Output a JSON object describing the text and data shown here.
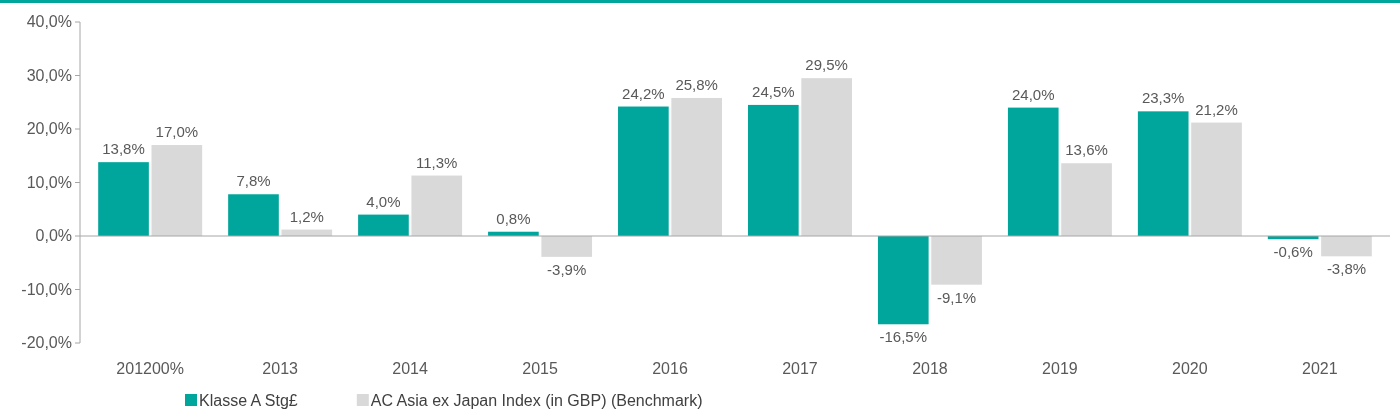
{
  "chart_data": {
    "type": "bar",
    "categories": [
      "201200%",
      "2013",
      "2014",
      "2015",
      "2016",
      "2017",
      "2018",
      "2019",
      "2020",
      "2021"
    ],
    "series": [
      {
        "name": "Klasse A Stg£",
        "color": "#00a59b",
        "values": [
          13.8,
          7.8,
          4.0,
          0.8,
          24.2,
          24.5,
          -16.5,
          24.0,
          23.3,
          -0.6
        ],
        "value_labels": [
          "13,8%",
          "7,8%",
          "4,0%",
          "0,8%",
          "24,2%",
          "24,5%",
          "-16,5%",
          "24,0%",
          "23,3%",
          "-0,6%"
        ]
      },
      {
        "name": "AC Asia ex Japan Index (in GBP) (Benchmark)",
        "color": "#d9d9d9",
        "values": [
          17.0,
          1.2,
          11.3,
          -3.9,
          25.8,
          29.5,
          -9.1,
          13.6,
          21.2,
          -3.8
        ],
        "value_labels": [
          "17,0%",
          "1,2%",
          "11,3%",
          "-3,9%",
          "25,8%",
          "29,5%",
          "-9,1%",
          "13,6%",
          "21,2%",
          "-3,8%"
        ]
      }
    ],
    "ylim": [
      -20,
      40
    ],
    "yticks": [
      {
        "value": -20,
        "label": "-20,0%"
      },
      {
        "value": -10,
        "label": "-10,0%"
      },
      {
        "value": 0,
        "label": "0,0%"
      },
      {
        "value": 10,
        "label": "10,0%"
      },
      {
        "value": 20,
        "label": "20,0%"
      },
      {
        "value": 30,
        "label": "30,0%"
      },
      {
        "value": 40,
        "label": "40,0%"
      }
    ],
    "legend": "bottom left"
  }
}
